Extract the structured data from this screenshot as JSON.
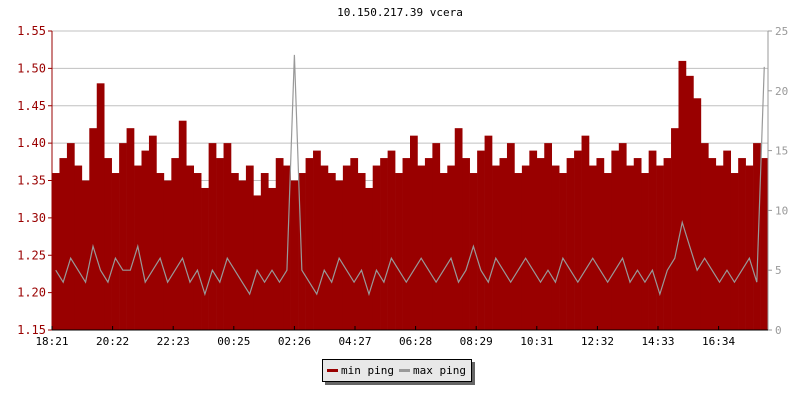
{
  "chart_data": {
    "type": "area",
    "title": "10.150.217.39 vcera",
    "x_tick_labels": [
      "18:21",
      "20:22",
      "22:23",
      "00:25",
      "02:26",
      "04:27",
      "06:28",
      "08:29",
      "10:31",
      "12:32",
      "14:33",
      "16:34"
    ],
    "x_start": "18:21",
    "interval_minutes": 15,
    "y_left": {
      "ylim": [
        1.15,
        1.55
      ],
      "ticks": [
        "1.15",
        "1.20",
        "1.25",
        "1.30",
        "1.35",
        "1.40",
        "1.45",
        "1.50",
        "1.55"
      ],
      "color": "#990000"
    },
    "y_right": {
      "ylim": [
        0,
        25
      ],
      "ticks": [
        "0",
        "5",
        "10",
        "15",
        "20",
        "25"
      ],
      "color": "#999999"
    },
    "grid": true,
    "legend": "bottom",
    "series": [
      {
        "name": "min ping",
        "axis": "left",
        "color": "#990000",
        "values": [
          1.36,
          1.38,
          1.4,
          1.37,
          1.35,
          1.42,
          1.48,
          1.38,
          1.36,
          1.4,
          1.42,
          1.37,
          1.39,
          1.41,
          1.36,
          1.35,
          1.38,
          1.43,
          1.37,
          1.36,
          1.34,
          1.4,
          1.38,
          1.4,
          1.36,
          1.35,
          1.37,
          1.33,
          1.36,
          1.34,
          1.38,
          1.37,
          1.35,
          1.36,
          1.38,
          1.39,
          1.37,
          1.36,
          1.35,
          1.37,
          1.38,
          1.36,
          1.34,
          1.37,
          1.38,
          1.39,
          1.36,
          1.38,
          1.41,
          1.37,
          1.38,
          1.4,
          1.36,
          1.37,
          1.42,
          1.38,
          1.36,
          1.39,
          1.41,
          1.37,
          1.38,
          1.4,
          1.36,
          1.37,
          1.39,
          1.38,
          1.4,
          1.37,
          1.36,
          1.38,
          1.39,
          1.41,
          1.37,
          1.38,
          1.36,
          1.39,
          1.4,
          1.37,
          1.38,
          1.36,
          1.39,
          1.37,
          1.38,
          1.42,
          1.51,
          1.49,
          1.46,
          1.4,
          1.38,
          1.37,
          1.39,
          1.36,
          1.38,
          1.37,
          1.4,
          1.38
        ]
      },
      {
        "name": "max ping",
        "axis": "right",
        "color": "#999999",
        "values": [
          5,
          4,
          6,
          5,
          4,
          7,
          5,
          4,
          6,
          5,
          5,
          7,
          4,
          5,
          6,
          4,
          5,
          6,
          4,
          5,
          3,
          5,
          4,
          6,
          5,
          4,
          3,
          5,
          4,
          5,
          4,
          5,
          23,
          5,
          4,
          3,
          5,
          4,
          6,
          5,
          4,
          5,
          3,
          5,
          4,
          6,
          5,
          4,
          5,
          6,
          5,
          4,
          5,
          6,
          4,
          5,
          7,
          5,
          4,
          6,
          5,
          4,
          5,
          6,
          5,
          4,
          5,
          4,
          6,
          5,
          4,
          5,
          6,
          5,
          4,
          5,
          6,
          4,
          5,
          4,
          5,
          3,
          5,
          6,
          9,
          7,
          5,
          6,
          5,
          4,
          5,
          4,
          5,
          6,
          4,
          22
        ]
      }
    ]
  },
  "legend": {
    "min_label": "min ping",
    "max_label": "max ping"
  }
}
